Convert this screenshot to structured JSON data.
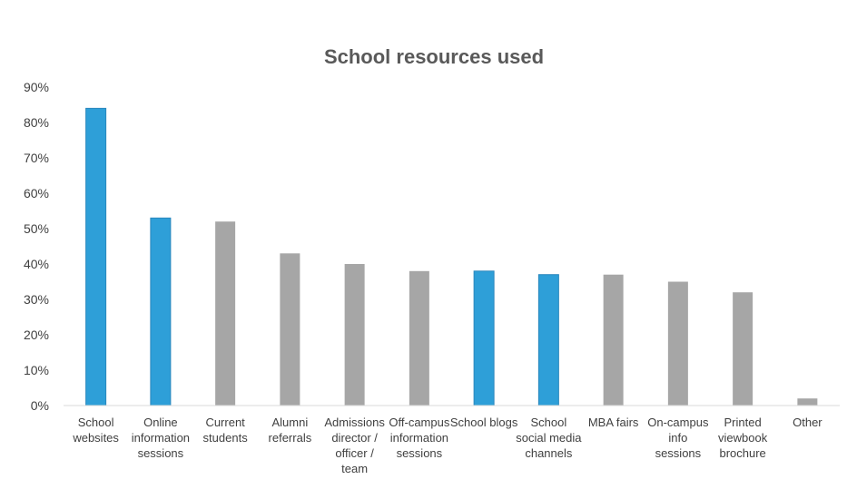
{
  "chart_data": {
    "type": "bar",
    "title": "School resources used",
    "xlabel": "",
    "ylabel": "",
    "ylim": [
      0,
      90
    ],
    "ytick_step": 10,
    "ytick_format": "percent",
    "grid": false,
    "legend": "none",
    "categories": [
      [
        "School",
        "websites"
      ],
      [
        "Online",
        "information",
        "sessions"
      ],
      [
        "Current",
        "students"
      ],
      [
        "Alumni",
        "referrals"
      ],
      [
        "Admissions",
        "director /",
        "officer /",
        "team"
      ],
      [
        "Off-campus",
        "information",
        "sessions"
      ],
      [
        "School blogs"
      ],
      [
        "School",
        "social media",
        "channels"
      ],
      [
        "MBA fairs"
      ],
      [
        "On-campus",
        "info",
        "sessions"
      ],
      [
        "Printed",
        "viewbook",
        "brochure"
      ],
      [
        "Other"
      ]
    ],
    "values": [
      84,
      53,
      52,
      43,
      40,
      38,
      38,
      37,
      37,
      35,
      32,
      2
    ],
    "highlighted": [
      true,
      true,
      false,
      false,
      false,
      false,
      true,
      true,
      false,
      false,
      false,
      false
    ],
    "colors": {
      "highlight": "#2e9fd8",
      "highlight_edge": "#2a87bd",
      "default": "#a6a6a6",
      "axis": "#d9d9d9"
    }
  }
}
